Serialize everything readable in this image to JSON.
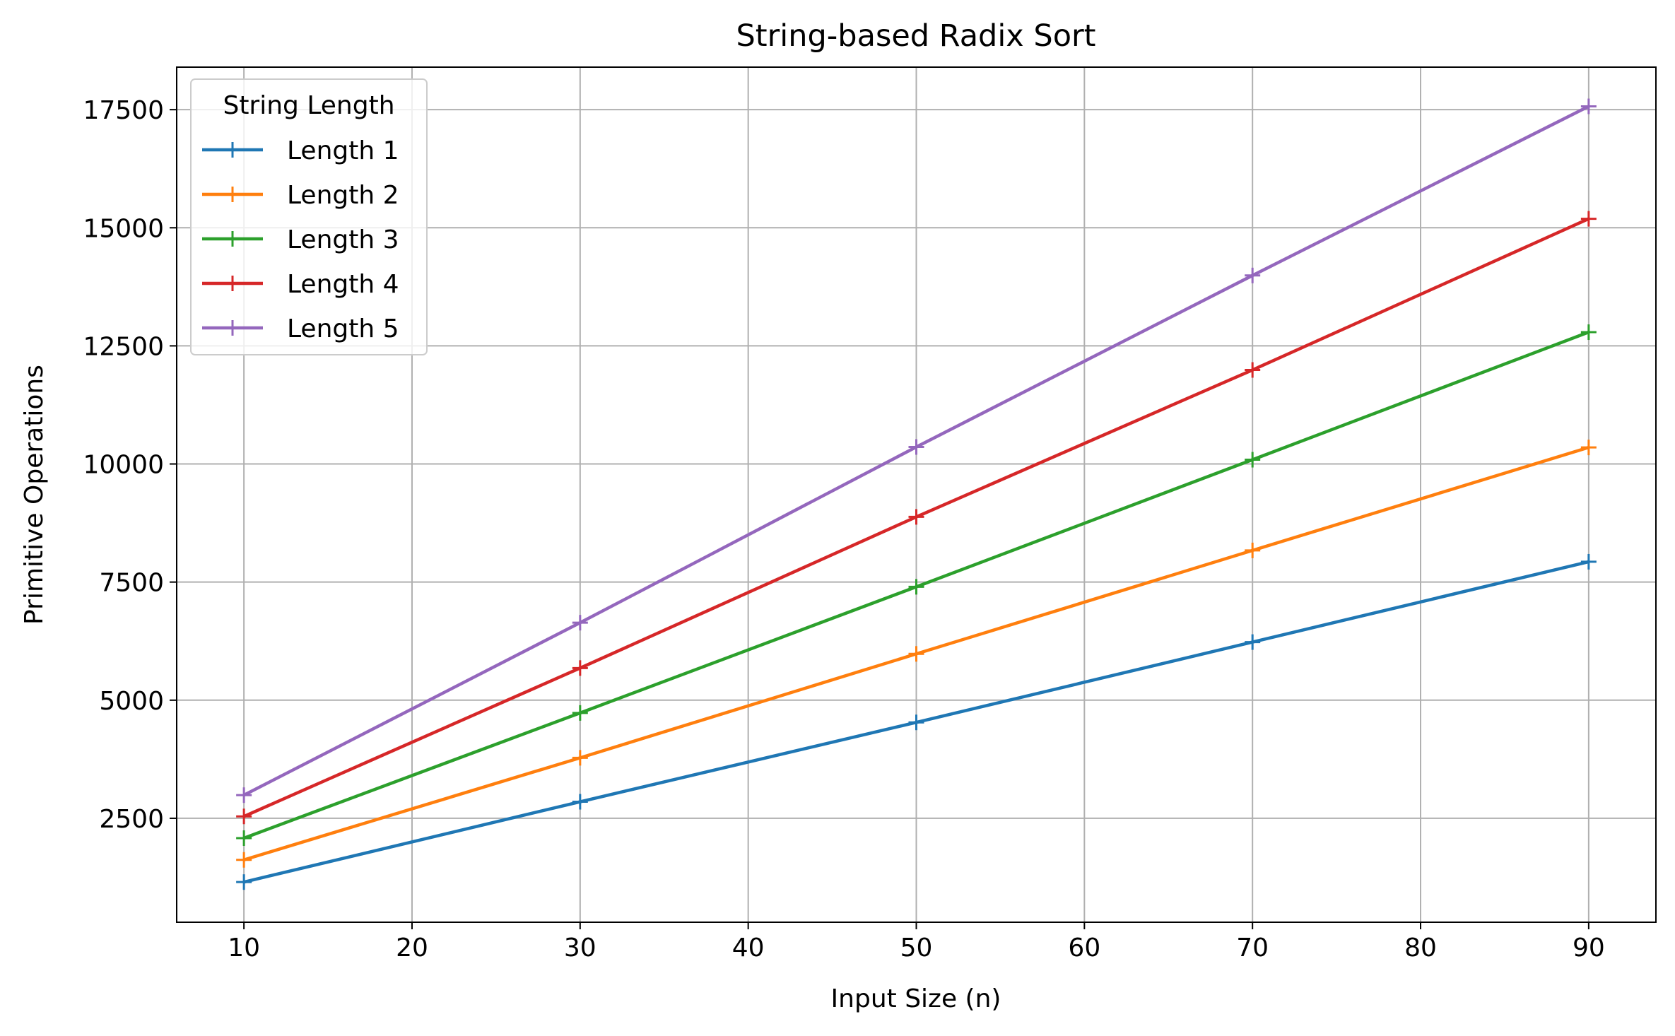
{
  "chart_data": {
    "type": "line",
    "title": "String-based Radix Sort",
    "xlabel": "Input Size (n)",
    "ylabel": "Primitive Operations",
    "x": [
      10,
      30,
      50,
      70,
      90
    ],
    "xlim": [
      6,
      94
    ],
    "ylim": [
      300,
      18400
    ],
    "xticks": [
      10,
      20,
      30,
      40,
      50,
      60,
      70,
      80,
      90
    ],
    "yticks": [
      2500,
      5000,
      7500,
      10000,
      12500,
      15000,
      17500
    ],
    "grid": true,
    "marker": "plus",
    "legend": {
      "title": "String Length",
      "placement": "top-left"
    },
    "series": [
      {
        "name": "Length 1",
        "color": "#1f77b4",
        "values": [
          1150,
          2850,
          4530,
          6230,
          7930
        ]
      },
      {
        "name": "Length 2",
        "color": "#ff7f0e",
        "values": [
          1620,
          3780,
          5980,
          8170,
          10350
        ]
      },
      {
        "name": "Length 3",
        "color": "#2ca02c",
        "values": [
          2080,
          4730,
          7400,
          10090,
          12790
        ]
      },
      {
        "name": "Length 4",
        "color": "#d62728",
        "values": [
          2540,
          5680,
          8880,
          11990,
          15190
        ]
      },
      {
        "name": "Length 5",
        "color": "#9467bd",
        "values": [
          2990,
          6640,
          10360,
          13990,
          17570
        ]
      }
    ]
  }
}
